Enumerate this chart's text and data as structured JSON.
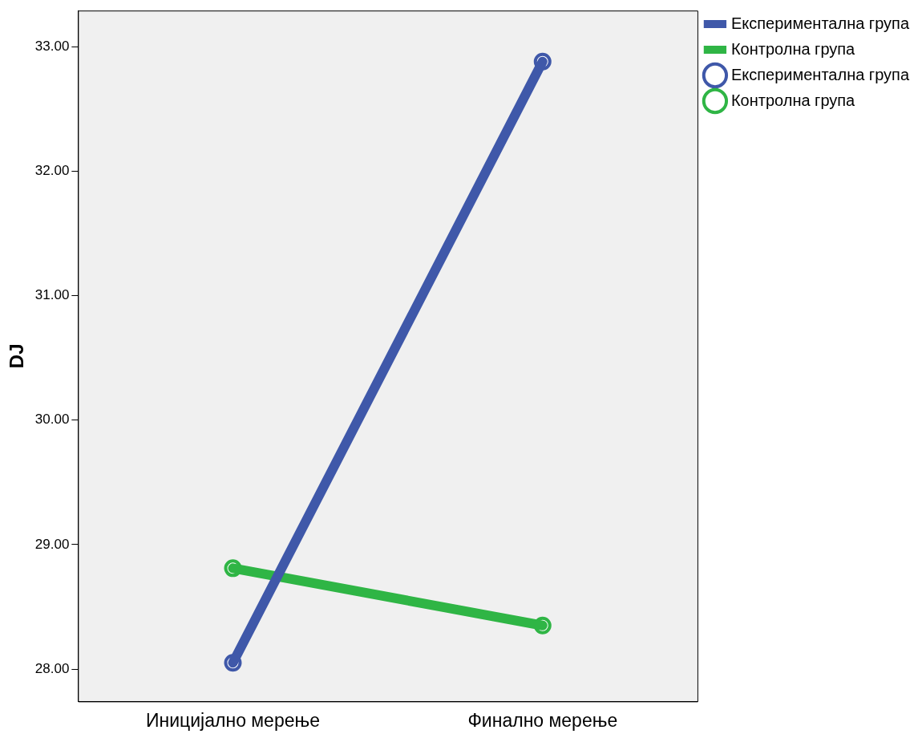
{
  "chart_data": {
    "type": "line",
    "ylabel": "DJ",
    "categories": [
      "Иницијално мерење",
      "Финално мерење"
    ],
    "series": [
      {
        "name": "Експериментална група",
        "marker": "none",
        "color": "#3f58a9",
        "values": [
          28.05,
          32.88
        ]
      },
      {
        "name": "Контролна група",
        "marker": "none",
        "color": "#2fb545",
        "values": [
          28.81,
          28.35
        ]
      },
      {
        "name": "Експериментална група",
        "type": "scatter",
        "marker": "circle",
        "color": "#3f58a9",
        "x": [
          "Иницијално мерење",
          "Финално мерење"
        ],
        "values": [
          28.05,
          32.88
        ]
      },
      {
        "name": "Контролна група",
        "type": "scatter",
        "marker": "circle",
        "color": "#2fb545",
        "x": [
          "Иницијално мерење",
          "Финално мерење"
        ],
        "values": [
          28.81,
          28.35
        ]
      }
    ],
    "ylim": [
      27.74,
      33.29
    ],
    "yticks": [
      {
        "value": 28,
        "label": "28.00"
      },
      {
        "value": 29,
        "label": "29.00"
      },
      {
        "value": 30,
        "label": "30.00"
      },
      {
        "value": 31,
        "label": "31.00"
      },
      {
        "value": 32,
        "label": "32.00"
      },
      {
        "value": 33,
        "label": "33.00"
      }
    ],
    "legend": "right"
  }
}
